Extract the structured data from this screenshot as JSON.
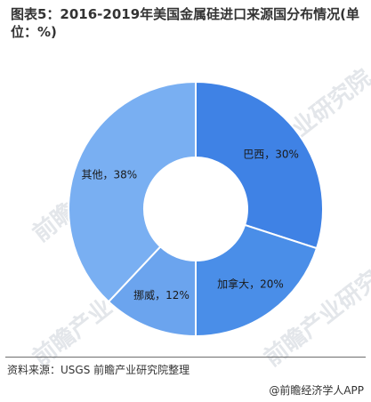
{
  "title": "图表5：2016-2019年美国金属硅进口来源国分布情况(单位：%)",
  "chart_data": {
    "type": "donut",
    "title": "图表5：2016-2019年美国金属硅进口来源国分布情况(单位：%)",
    "unit": "%",
    "slices": [
      {
        "name": "巴西",
        "value": 30,
        "label": "巴西，30%",
        "color": "#3f82e5"
      },
      {
        "name": "加拿大",
        "value": 20,
        "label": "加拿大，20%",
        "color": "#4a8ee8"
      },
      {
        "name": "挪威",
        "value": 12,
        "label": "挪威，12%",
        "color": "#6ba4ee"
      },
      {
        "name": "其他",
        "value": 38,
        "label": "其他，38%",
        "color": "#79aff2"
      }
    ]
  },
  "watermark": "前瞻产业研究院",
  "source": "资料来源：USGS 前瞻产业研究院整理",
  "brand": "@前瞻经济学人APP"
}
